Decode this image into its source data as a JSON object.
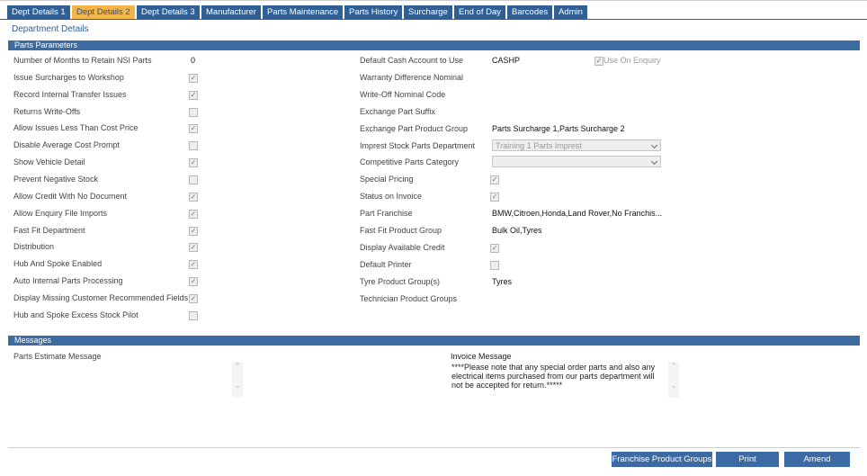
{
  "tabs": [
    {
      "label": "Dept Details 1"
    },
    {
      "label": "Dept Details 2",
      "active": true
    },
    {
      "label": "Dept Details 3"
    },
    {
      "label": "Manufacturer"
    },
    {
      "label": "Parts Maintenance"
    },
    {
      "label": "Parts History"
    },
    {
      "label": "Surcharge"
    },
    {
      "label": "End of Day"
    },
    {
      "label": "Barcodes"
    },
    {
      "label": "Admin"
    }
  ],
  "section_title": "Department Details",
  "parameters": {
    "title": "Parts Parameters",
    "left": [
      {
        "label": "Number of Months to Retain NSI Parts",
        "value": "0"
      },
      {
        "label": "Issue Surcharges to Workshop",
        "checked": true
      },
      {
        "label": "Record Internal Transfer Issues",
        "checked": true
      },
      {
        "label": "Returns Write-Offs",
        "checked": false
      },
      {
        "label": "Allow Issues Less Than Cost Price",
        "checked": true
      },
      {
        "label": "Disable Average Cost Prompt",
        "checked": false
      },
      {
        "label": "Show Vehicle Detail",
        "checked": true
      },
      {
        "label": "Prevent Negative Stock",
        "checked": false
      },
      {
        "label": "Allow Credit With No Document",
        "checked": true
      },
      {
        "label": "Allow Enquiry File Imports",
        "checked": true
      },
      {
        "label": "Fast Fit Department",
        "checked": true
      },
      {
        "label": "Distribution",
        "checked": true
      },
      {
        "label": "Hub And Spoke Enabled",
        "checked": true
      },
      {
        "label": "Auto Internal Parts Processing",
        "checked": true
      },
      {
        "label": "Display Missing Customer Recommended Fields",
        "checked": true
      },
      {
        "label": "Hub and Spoke Excess Stock Pilot",
        "checked": false
      }
    ],
    "right": [
      {
        "label": "Default Cash Account to Use",
        "value": "CASHP",
        "option": {
          "label": "Use On Enquiry",
          "checked": true
        }
      },
      {
        "label": "Warranty Difference Nominal"
      },
      {
        "label": "Write-Off Nominal Code"
      },
      {
        "label": "Exchange Part Suffix"
      },
      {
        "label": "Exchange Part Product Group",
        "value": "Parts Surcharge 1,Parts Surcharge 2"
      },
      {
        "label": "Imprest Stock Parts Department",
        "select": "Training 1 Parts Imprest"
      },
      {
        "label": "Competitive Parts Category",
        "select": ""
      },
      {
        "label": "Special Pricing",
        "checked": true
      },
      {
        "label": "Status on Invoice",
        "checked": true
      },
      {
        "label": "Part Franchise",
        "value": "BMW,Citroen,Honda,Land Rover,No Franchis..."
      },
      {
        "label": "Fast Fit Product Group",
        "value": "Bulk Oil,Tyres"
      },
      {
        "label": "Display Available Credit",
        "checked": true
      },
      {
        "label": "Default Printer",
        "checked": false
      },
      {
        "label": "Tyre Product Group(s)",
        "value": "Tyres"
      },
      {
        "label": "Technician Product Groups"
      }
    ]
  },
  "messages": {
    "title": "Messages",
    "parts_estimate_label": "Parts Estimate Message",
    "invoice_label": "Invoice Message",
    "invoice_text": "****Please note that any special order parts and also any electrical items purchased from our parts department will not be accepted for return.*****"
  },
  "buttons": [
    "Franchise Product Groups",
    "Print",
    "Amend"
  ]
}
